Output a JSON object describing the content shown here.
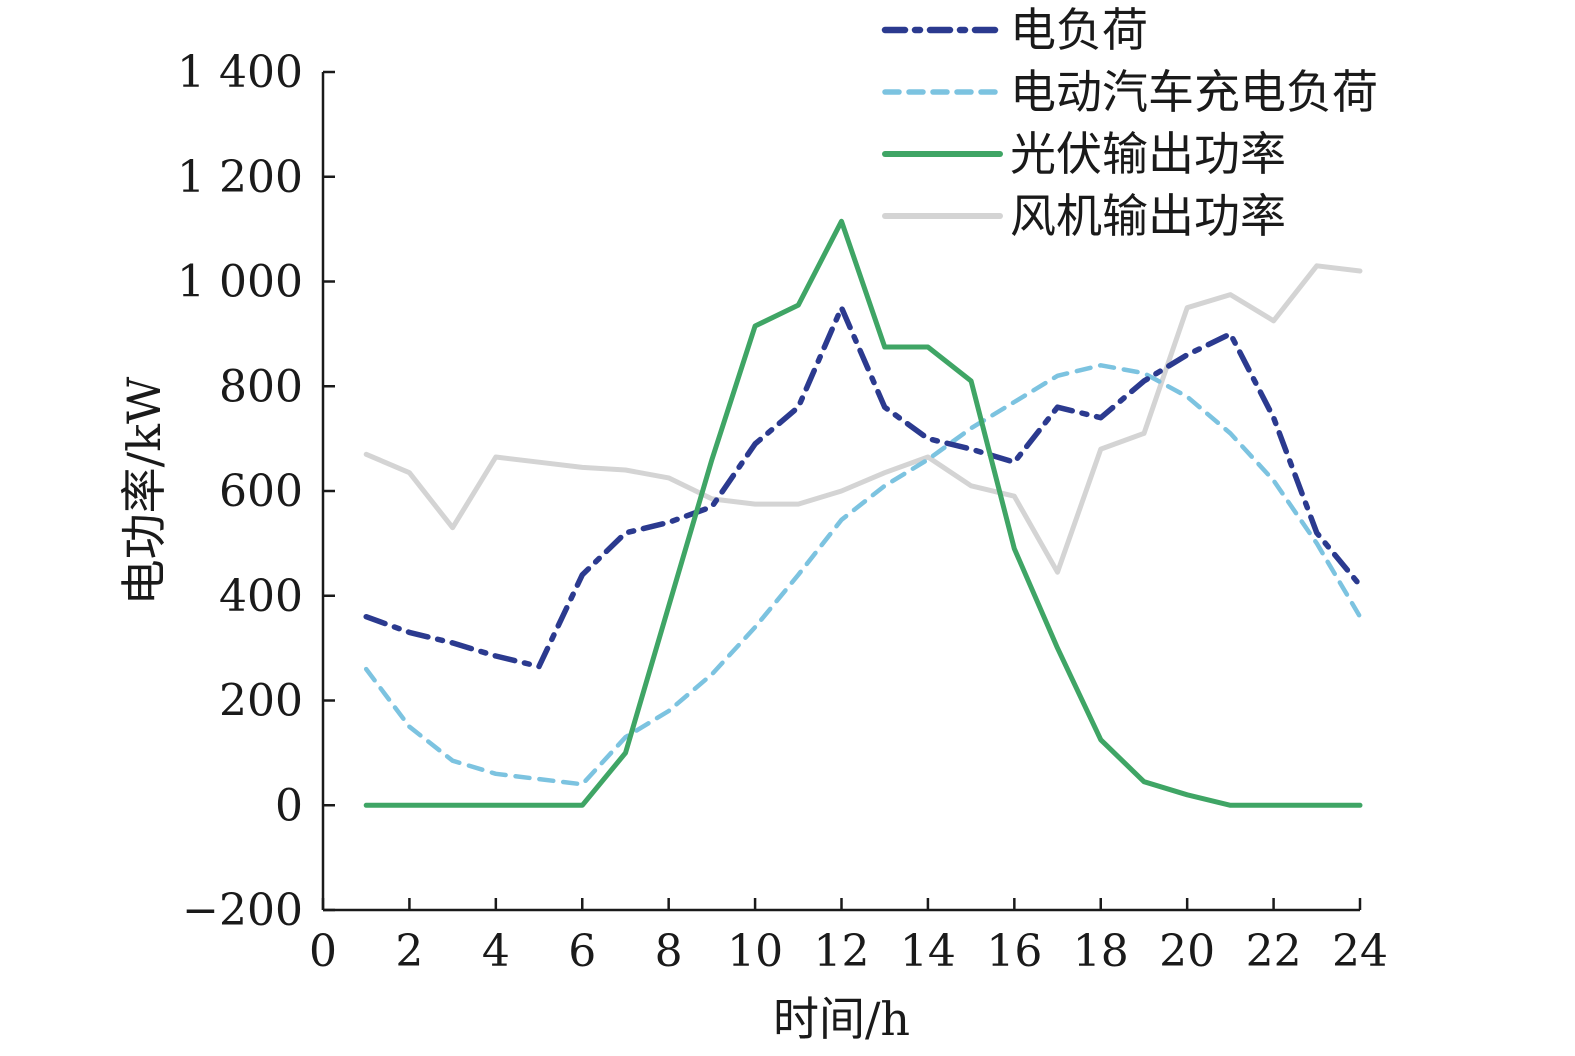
{
  "chart_data": {
    "type": "line",
    "xlabel": "时间/h",
    "ylabel": "电功率/kW",
    "xlim": [
      0,
      24
    ],
    "ylim": [
      -200,
      1400
    ],
    "x_ticks": [
      0,
      2,
      4,
      6,
      8,
      10,
      12,
      14,
      16,
      18,
      20,
      22,
      24
    ],
    "y_ticks": [
      -200,
      0,
      200,
      400,
      600,
      800,
      1000,
      1200,
      1400
    ],
    "x_tick_labels": [
      "0",
      "2",
      "4",
      "6",
      "8",
      "10",
      "12",
      "14",
      "16",
      "18",
      "20",
      "22",
      "24"
    ],
    "y_tick_labels": [
      "−200",
      "0",
      "200",
      "400",
      "600",
      "800",
      "1 000",
      "1 200",
      "1 400"
    ],
    "grid": false,
    "legend_position": "top-right",
    "x": [
      1,
      2,
      3,
      4,
      5,
      6,
      7,
      8,
      9,
      10,
      11,
      12,
      13,
      14,
      15,
      16,
      17,
      18,
      19,
      20,
      21,
      22,
      23,
      24
    ],
    "series": [
      {
        "name": "电负荷",
        "color": "#2b3a8f",
        "dash": "dashdot",
        "values": [
          360,
          330,
          310,
          285,
          265,
          440,
          520,
          540,
          570,
          690,
          760,
          950,
          760,
          700,
          680,
          655,
          760,
          740,
          810,
          860,
          900,
          740,
          520,
          420
        ]
      },
      {
        "name": "电动汽车充电负荷",
        "color": "#7cc3e0",
        "dash": "dashed",
        "values": [
          260,
          150,
          85,
          60,
          50,
          40,
          130,
          180,
          250,
          340,
          440,
          545,
          610,
          660,
          720,
          770,
          820,
          840,
          825,
          780,
          710,
          620,
          500,
          360
        ]
      },
      {
        "name": "光伏输出功率",
        "color": "#3fa565",
        "dash": "solid",
        "values": [
          0,
          0,
          0,
          0,
          0,
          0,
          100,
          380,
          660,
          915,
          955,
          1115,
          875,
          875,
          810,
          490,
          300,
          125,
          45,
          20,
          0,
          0,
          0,
          0
        ]
      },
      {
        "name": "风机输出功率",
        "color": "#d4d4d4",
        "dash": "solid",
        "values": [
          670,
          635,
          530,
          665,
          655,
          645,
          640,
          625,
          585,
          575,
          575,
          600,
          635,
          665,
          610,
          590,
          445,
          680,
          710,
          950,
          975,
          925,
          1030,
          1020
        ]
      }
    ]
  }
}
